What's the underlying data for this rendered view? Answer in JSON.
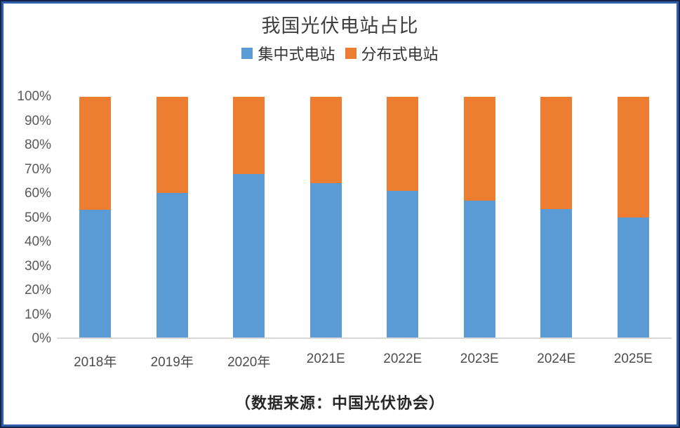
{
  "title": "我国光伏电站占比",
  "caption": "（数据来源：中国光伏协会）",
  "chart_data": {
    "type": "bar",
    "stacked": true,
    "stacked_mode": "percent",
    "title": "我国光伏电站占比",
    "xlabel": "",
    "ylabel": "",
    "ylim": [
      0,
      100
    ],
    "yticks": [
      "0%",
      "10%",
      "20%",
      "30%",
      "40%",
      "50%",
      "60%",
      "70%",
      "80%",
      "90%",
      "100%"
    ],
    "grid": false,
    "legend_position": "top",
    "categories": [
      "2018年",
      "2019年",
      "2020年",
      "2021E",
      "2022E",
      "2023E",
      "2024E",
      "2025E"
    ],
    "series": [
      {
        "name": "集中式电站",
        "color": "#5B9BD5",
        "values": [
          53,
          60,
          68,
          64,
          61,
          57,
          53.5,
          50
        ]
      },
      {
        "name": "分布式电站",
        "color": "#ED7D31",
        "values": [
          47,
          40,
          32,
          36,
          39,
          43,
          46.5,
          50
        ]
      }
    ],
    "frame_border_color": "#2f5fa8",
    "axis_line_color": "#d9d9d9"
  }
}
